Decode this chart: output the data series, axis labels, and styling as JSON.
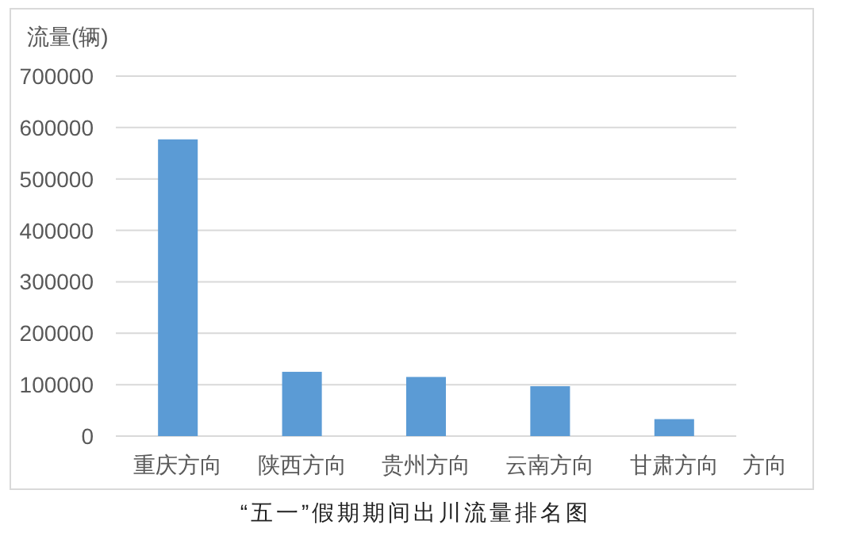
{
  "chart_data": {
    "type": "bar",
    "title": "“五一”假期期间出川流量排名图",
    "ylabel": "流量(辆)",
    "xlabel": "方向",
    "categories": [
      "重庆方向",
      "陕西方向",
      "贵州方向",
      "云南方向",
      "甘肃方向"
    ],
    "values": [
      577000,
      125000,
      115000,
      97000,
      33000
    ],
    "color": "#5b9bd5",
    "ylim": [
      0,
      700000
    ],
    "yticks": [
      0,
      100000,
      200000,
      300000,
      400000,
      500000,
      600000,
      700000
    ],
    "grid": "y"
  }
}
